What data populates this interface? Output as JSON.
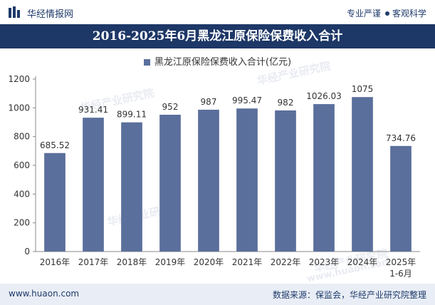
{
  "header": {
    "brand": "华经情报网",
    "slogan_left": "专业严谨",
    "slogan_right": "客观科学"
  },
  "footer": {
    "site": "www.huaon.com",
    "source": "数据来源：保监会，华经产业研究院整理"
  },
  "watermarks": {
    "cn": "华经产业研究院",
    "url": "www.huaon.com"
  },
  "chart_data": {
    "type": "bar",
    "title": "2016-2025年6月黑龙江原保险保费收入合计",
    "legend": "黑龙江原保险保费收入合计(亿元)",
    "legend_placement": "top",
    "categories": [
      "2016年",
      "2017年",
      "2018年",
      "2019年",
      "2020年",
      "2021年",
      "2022年",
      "2023年",
      "2024年",
      "2025年\n1-6月"
    ],
    "values": [
      685.52,
      931.41,
      899.11,
      952,
      987,
      995.47,
      982,
      1026.03,
      1075,
      734.76
    ],
    "value_labels": [
      "685.52",
      "931.41",
      "899.11",
      "952",
      "987",
      "995.47",
      "982",
      "1026.03",
      "1075",
      "734.76"
    ],
    "ylim": [
      0,
      1200
    ],
    "yticks": [
      0,
      200,
      400,
      600,
      800,
      1000,
      1200
    ],
    "grid": false,
    "bar_color": "#5b6f9c",
    "xlabel": "",
    "ylabel": ""
  }
}
